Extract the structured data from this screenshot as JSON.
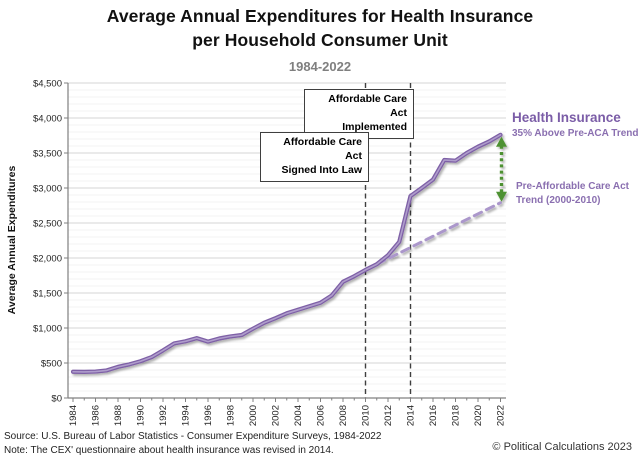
{
  "title": {
    "line1": "Average Annual Expenditures for Health Insurance",
    "line2": "per Household Consumer Unit",
    "subtitle": "1984-2022"
  },
  "y_axis": {
    "label": "Average Annual Expenditures",
    "tick_prefix": "$",
    "ticks": [
      "$0",
      "$500",
      "$1,000",
      "$1,500",
      "$2,000",
      "$2,500",
      "$3,000",
      "$3,500",
      "$4,000",
      "$4,500"
    ]
  },
  "x_axis": {
    "start": 1984,
    "end": 2022,
    "label_step": 2
  },
  "chart_data": {
    "type": "line",
    "title": "Average Annual Expenditures for Health Insurance per Household Consumer Unit",
    "subtitle": "1984-2022",
    "ylabel": "Average Annual Expenditures",
    "xlabel": "",
    "ylim": [
      0,
      4500
    ],
    "ytick_step": 500,
    "minor_gridline_step": 100,
    "grid": true,
    "x": [
      1984,
      1985,
      1986,
      1987,
      1988,
      1989,
      1990,
      1991,
      1992,
      1993,
      1994,
      1995,
      1996,
      1997,
      1998,
      1999,
      2000,
      2001,
      2002,
      2003,
      2004,
      2005,
      2006,
      2007,
      2008,
      2009,
      2010,
      2011,
      2012,
      2013,
      2014,
      2015,
      2016,
      2017,
      2018,
      2019,
      2020,
      2021,
      2022
    ],
    "series": [
      {
        "name": "Health Insurance",
        "style": "solid",
        "color": "#7e60a6",
        "values": [
          375,
          373,
          378,
          394,
          445,
          480,
          525,
          585,
          680,
          780,
          810,
          855,
          805,
          850,
          880,
          900,
          990,
          1075,
          1140,
          1210,
          1260,
          1310,
          1360,
          1465,
          1660,
          1740,
          1830,
          1910,
          2040,
          2230,
          2885,
          3000,
          3120,
          3400,
          3390,
          3500,
          3590,
          3665,
          3760
        ]
      },
      {
        "name": "Pre-Affordable Care Act Trend (2000-2010)",
        "style": "dashed",
        "color": "#ab97cb",
        "x": [
          2010,
          2022
        ],
        "values": [
          1830,
          2790
        ]
      }
    ],
    "vertical_markers": [
      {
        "year": 2010,
        "label": "Affordable Care Act Signed Into Law"
      },
      {
        "year": 2014,
        "label": "Affordable Care Act Implemented"
      }
    ],
    "gap_arrow": {
      "year": 2022,
      "from_value": 2790,
      "to_value": 3760,
      "label": "35% Above Pre-ACA Trend",
      "color": "#4e9130"
    }
  },
  "annotations": {
    "implemented": {
      "line1": "Affordable Care Act",
      "line2": "Implemented"
    },
    "signed": {
      "line1": "Affordable Care Act",
      "line2": "Signed Into Law"
    }
  },
  "side_labels": {
    "series_name": "Health Insurance",
    "series_sub": "35% Above Pre-ACA Trend",
    "trend_name": "Pre-Affordable Care Act Trend (2000-2010)"
  },
  "footer": {
    "source": "Source: U.S. Bureau of Labor Statistics - Consumer Expenditure Surveys, 1984-2022",
    "note": "Note: The CEX' questionnaire about health insurance was revised in 2014.",
    "copyright": "© Political Calculations 2023"
  },
  "colors": {
    "line_main": "#7e60a6",
    "line_highlight": "#b2a0ce",
    "trend": "#ab97cb",
    "arrow_green": "#4e9130",
    "marker_dash": "#3f3f3f",
    "grid_major": "#d4d4d4",
    "grid_minor": "#f3f3f3",
    "axis": "#808080",
    "purple_text": "#7b5da7"
  }
}
